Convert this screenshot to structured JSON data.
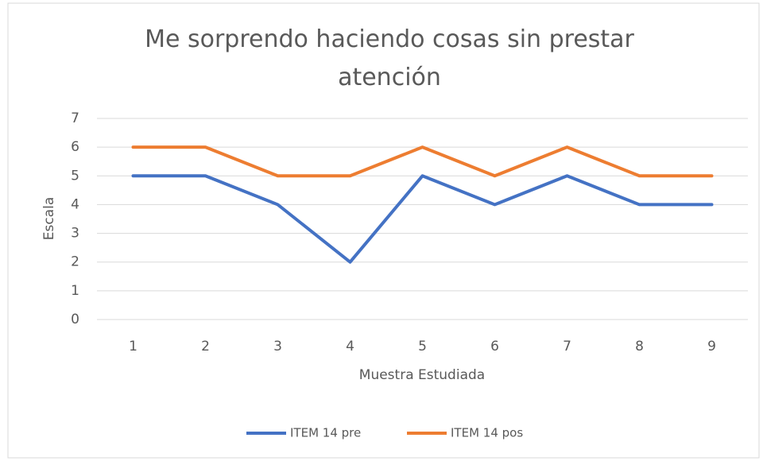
{
  "chart_data": {
    "type": "line",
    "title": "Me sorprendo haciendo cosas sin prestar atención",
    "x_label": "Muestra Estudiada",
    "y_label": "Escala",
    "categories": [
      "1",
      "2",
      "3",
      "4",
      "5",
      "6",
      "7",
      "8",
      "9"
    ],
    "series": [
      {
        "name": "ITEM 14 pre",
        "color": "#4472c4",
        "values": [
          5,
          5,
          4,
          2,
          5,
          4,
          5,
          4,
          4
        ]
      },
      {
        "name": "ITEM 14 pos",
        "color": "#ed7d31",
        "values": [
          6,
          6,
          5,
          5,
          6,
          5,
          6,
          5,
          5
        ]
      }
    ],
    "ylim": [
      0,
      7
    ],
    "yticks": [
      0,
      1,
      2,
      3,
      4,
      5,
      6,
      7
    ],
    "grid": true,
    "legend": "bottom"
  }
}
